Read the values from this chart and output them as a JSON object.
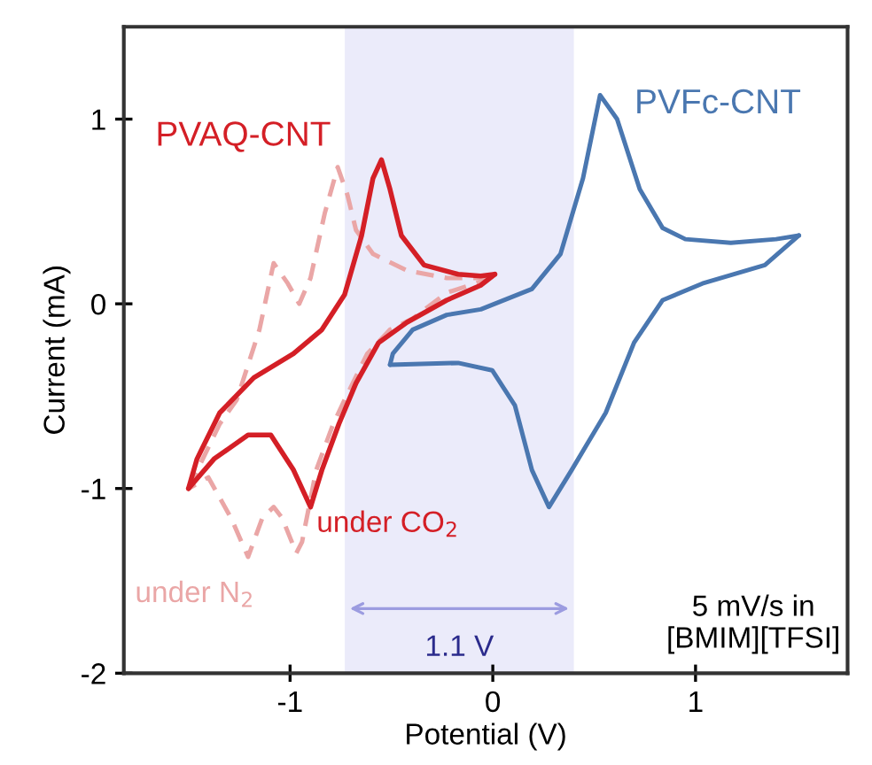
{
  "chart_data": {
    "type": "line",
    "xlabel": "Potential (V)",
    "ylabel": "Current (mA)",
    "xlim": [
      -1.82,
      1.75
    ],
    "ylim": [
      -2,
      1.5
    ],
    "xticks": [
      -1,
      0,
      1
    ],
    "yticks": [
      -2,
      -1,
      0,
      1
    ],
    "grid": false,
    "legend": false,
    "marker": "none",
    "series": [
      {
        "name": "under N$_{2}$",
        "color": "#eaa6a6",
        "line_style": "dashed",
        "x": [
          0.0,
          -0.06,
          -0.227,
          -0.395,
          -0.507,
          -0.619,
          -0.731,
          -0.787,
          -0.871,
          -0.941,
          -0.969,
          -1.039,
          -1.081,
          -1.137,
          -1.207,
          -1.291,
          -1.403,
          -1.501
        ],
        "values": [
          0.15,
          0.12,
          0.06,
          -0.08,
          -0.14,
          -0.27,
          -0.52,
          -0.65,
          -0.9,
          -1.29,
          -1.35,
          -1.16,
          -1.1,
          -1.16,
          -1.37,
          -1.16,
          -0.94,
          -1.0
        ]
      },
      {
        "color": "#eaa6a6",
        "line_style": "dashed",
        "x": [
          -1.501,
          -1.347,
          -1.263,
          -1.151,
          -1.081,
          -1.011,
          -0.955,
          -0.899,
          -0.829,
          -0.765,
          -0.717,
          -0.675,
          -0.591,
          -0.423,
          -0.227,
          -0.059,
          0.0
        ],
        "values": [
          -1.0,
          -0.65,
          -0.52,
          -0.14,
          0.22,
          0.11,
          0.0,
          0.14,
          0.49,
          0.74,
          0.59,
          0.4,
          0.27,
          0.18,
          0.14,
          0.14,
          0.15
        ]
      },
      {
        "name": "under CO$_{2}$",
        "color": "#d41f26",
        "line_style": "solid",
        "x": [
          0.01,
          -0.06,
          -0.227,
          -0.423,
          -0.563,
          -0.675,
          -0.759,
          -0.843,
          -0.899,
          -0.983,
          -1.095,
          -1.207,
          -1.375,
          -1.501
        ],
        "values": [
          0.16,
          0.1,
          0.02,
          -0.1,
          -0.21,
          -0.43,
          -0.65,
          -0.9,
          -1.1,
          -0.9,
          -0.71,
          -0.71,
          -0.84,
          -1.0
        ]
      },
      {
        "color": "#d41f26",
        "line_style": "solid",
        "x": [
          -1.501,
          -1.459,
          -1.347,
          -1.179,
          -0.983,
          -0.843,
          -0.731,
          -0.647,
          -0.591,
          -0.549,
          -0.507,
          -0.451,
          -0.339,
          -0.171,
          -0.06,
          0.01
        ],
        "values": [
          -1.0,
          -0.84,
          -0.59,
          -0.4,
          -0.27,
          -0.14,
          0.05,
          0.37,
          0.68,
          0.78,
          0.62,
          0.37,
          0.21,
          0.16,
          0.15,
          0.16
        ]
      },
      {
        "name": "PVFc-CNT",
        "color": "#4a77b0",
        "line_style": "solid",
        "x": [
          -0.507,
          -0.493,
          -0.395,
          -0.227,
          -0.059,
          0.193,
          0.334,
          0.445,
          0.529,
          0.613,
          0.725,
          0.838,
          0.95,
          1.174,
          1.397,
          1.51
        ],
        "values": [
          -0.33,
          -0.27,
          -0.14,
          -0.06,
          -0.03,
          0.08,
          0.27,
          0.68,
          1.13,
          1.0,
          0.62,
          0.41,
          0.35,
          0.33,
          0.35,
          0.37
        ]
      },
      {
        "color": "#4a77b0",
        "line_style": "solid",
        "x": [
          1.51,
          1.342,
          1.034,
          0.838,
          0.697,
          0.557,
          0.389,
          0.277,
          0.193,
          0.109,
          -0.003,
          -0.171,
          -0.507
        ],
        "values": [
          0.37,
          0.21,
          0.11,
          0.02,
          -0.21,
          -0.59,
          -0.9,
          -1.1,
          -0.9,
          -0.55,
          -0.36,
          -0.32,
          -0.33
        ]
      }
    ],
    "bands": [
      {
        "axis": "x",
        "from": -0.73,
        "to": 0.4,
        "label": "1.1 V",
        "color": "#ebebfa"
      }
    ],
    "annotations": [
      "PVAQ-CNT",
      "5 mV/s in\n[BMIM][TFSI]"
    ]
  }
}
